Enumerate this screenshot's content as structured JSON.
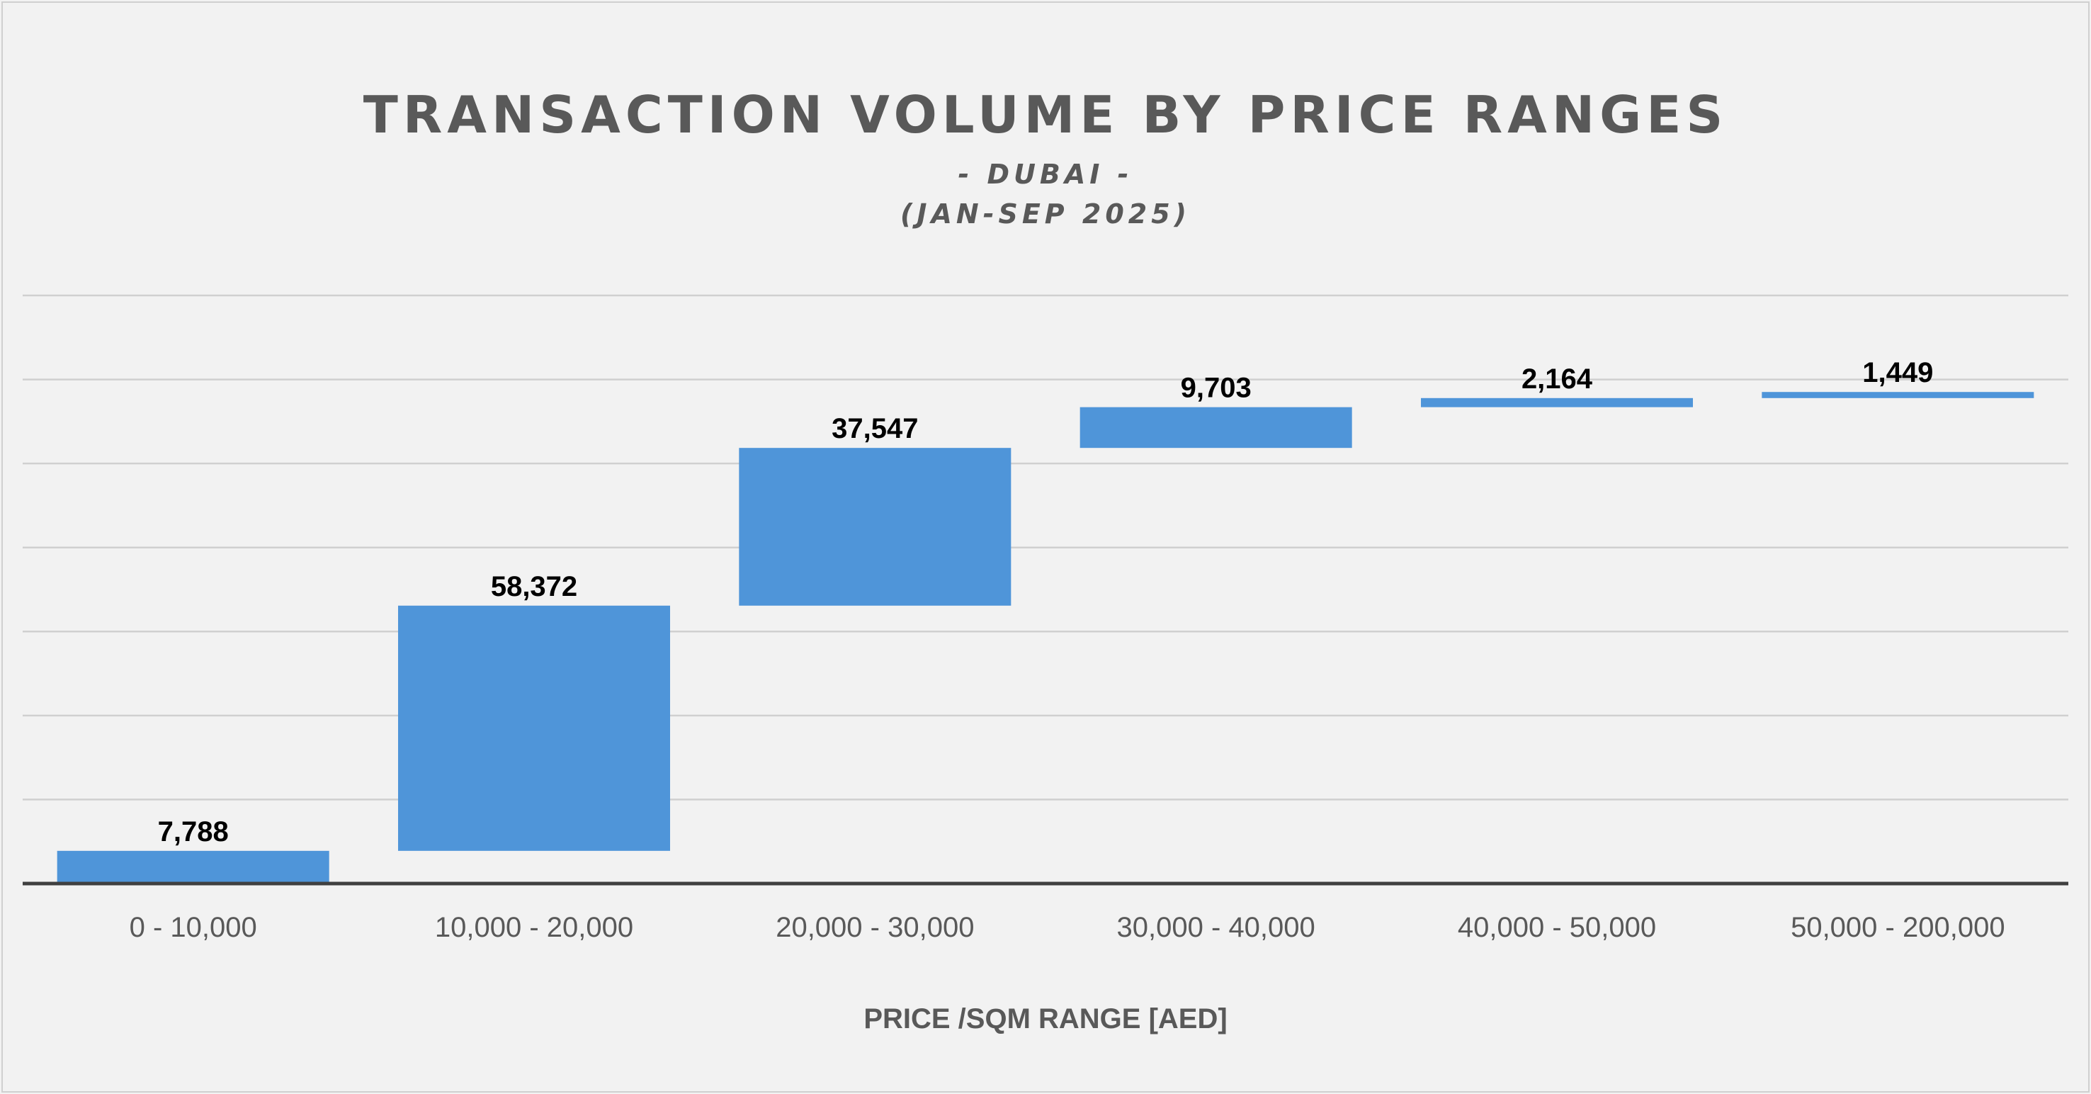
{
  "chart_data": {
    "type": "bar",
    "variant": "waterfall",
    "title": "TRANSACTION VOLUME BY PRICE RANGES",
    "subtitle_lines": [
      "- DUBAI -",
      "(JAN-SEP 2025)"
    ],
    "xlabel": "PRICE /SQM RANGE [AED]",
    "ylabel": "",
    "categories": [
      "0 - 10,000",
      "10,000 - 20,000",
      "20,000 - 30,000",
      "30,000 - 40,000",
      "40,000 - 50,000",
      "50,000 - 200,000"
    ],
    "values": [
      7788,
      58372,
      37547,
      9703,
      2164,
      1449
    ],
    "data_labels": [
      "7,788",
      "58,372",
      "37,547",
      "9,703",
      "2,164",
      "1,449"
    ],
    "ylim": [
      0,
      140000
    ],
    "grid": true,
    "legend": "none",
    "bar_color": "#4f95d9"
  }
}
